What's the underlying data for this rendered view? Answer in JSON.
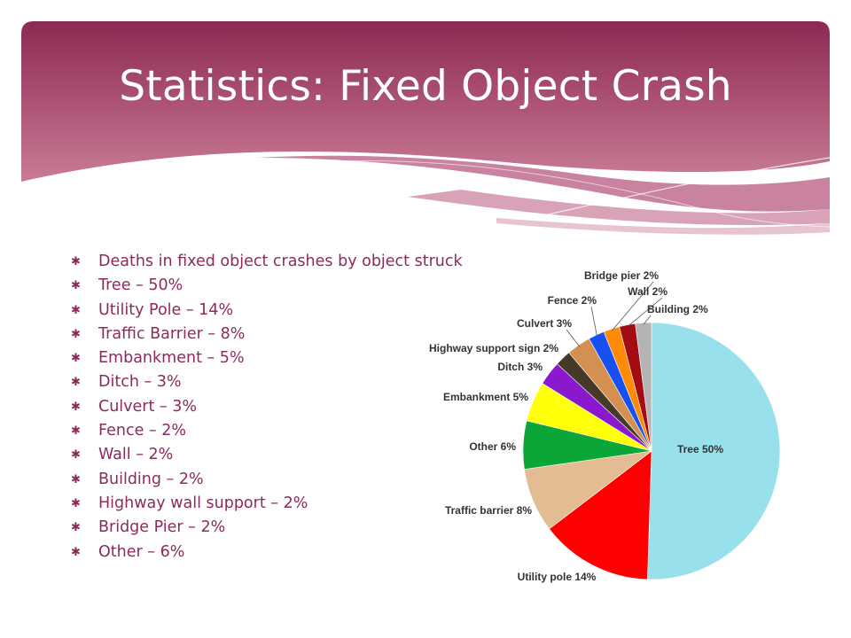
{
  "slide": {
    "title": "Statistics: Fixed Object Crash"
  },
  "bullets": [
    "Deaths in fixed object crashes by object struck",
    "Tree – 50%",
    "Utility Pole – 14%",
    "Traffic Barrier – 8%",
    "Embankment – 5%",
    "Ditch – 3%",
    "Culvert – 3%",
    "Fence – 2%",
    "Wall – 2%",
    "Building – 2%",
    "Highway wall support – 2%",
    "Bridge Pier – 2%",
    "Other – 6%"
  ],
  "theme": {
    "banner_top": "#8e2a54",
    "banner_bottom": "#c0708c",
    "text_accent": "#8e2a5b"
  },
  "chart_data": {
    "type": "pie",
    "title": "",
    "start_angle_deg": 0,
    "direction": "clockwise",
    "slices": [
      {
        "label": "Tree 50%",
        "value": 50,
        "color": "#98e0ec"
      },
      {
        "label": "Utility pole 14%",
        "value": 14,
        "color": "#fe0000"
      },
      {
        "label": "Traffic barrier 8%",
        "value": 8,
        "color": "#e4bc94"
      },
      {
        "label": "Other 6%",
        "value": 6,
        "color": "#0aa637"
      },
      {
        "label": "Embankment 5%",
        "value": 5,
        "color": "#ffff06"
      },
      {
        "label": "Ditch 3%",
        "value": 3,
        "color": "#8a18cc"
      },
      {
        "label": "Highway support sign 2%",
        "value": 2,
        "color": "#453a28"
      },
      {
        "label": "Culvert 3%",
        "value": 3,
        "color": "#d49050"
      },
      {
        "label": "Fence 2%",
        "value": 2,
        "color": "#1650f0"
      },
      {
        "label": "Bridge pier 2%",
        "value": 2,
        "color": "#ff8a08"
      },
      {
        "label": "Wall 2%",
        "value": 2,
        "color": "#a30c10"
      },
      {
        "label": "Building 2%",
        "value": 2,
        "color": "#b4b4b4"
      }
    ]
  }
}
